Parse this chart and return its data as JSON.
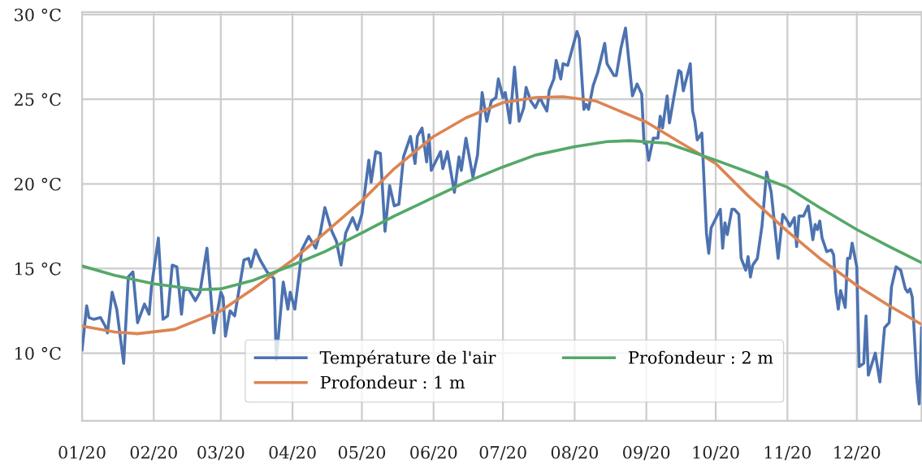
{
  "chart_data": {
    "type": "line",
    "xlim": [
      "2020-01-01",
      "2020-12-29"
    ],
    "xticks": [
      {
        "value": "2020-01-01",
        "label": "01/20"
      },
      {
        "value": "2020-02-01",
        "label": "02/20"
      },
      {
        "value": "2020-03-01",
        "label": "03/20"
      },
      {
        "value": "2020-04-01",
        "label": "04/20"
      },
      {
        "value": "2020-05-01",
        "label": "05/20"
      },
      {
        "value": "2020-06-01",
        "label": "06/20"
      },
      {
        "value": "2020-07-01",
        "label": "07/20"
      },
      {
        "value": "2020-08-01",
        "label": "08/20"
      },
      {
        "value": "2020-09-01",
        "label": "09/20"
      },
      {
        "value": "2020-10-01",
        "label": "10/20"
      },
      {
        "value": "2020-11-01",
        "label": "11/20"
      },
      {
        "value": "2020-12-01",
        "label": "12/20"
      }
    ],
    "ylim": [
      6,
      30.15
    ],
    "yticks": [
      {
        "value": 10,
        "label": "10 °C"
      },
      {
        "value": 15,
        "label": "15 °C"
      },
      {
        "value": 20,
        "label": "20 °C"
      },
      {
        "value": 25,
        "label": "25 °C"
      },
      {
        "value": 30,
        "label": "30 °C"
      }
    ],
    "grid": true,
    "legend": "bottom",
    "line_style": "solid",
    "marker": "none",
    "series": [
      {
        "name": "Température de l'air",
        "color": "#4c72b0",
        "x": [
          "2020-01-01",
          "2020-01-03",
          "2020-01-04",
          "2020-01-06",
          "2020-01-09",
          "2020-01-11",
          "2020-01-12",
          "2020-01-14",
          "2020-01-16",
          "2020-01-19",
          "2020-01-21",
          "2020-01-23",
          "2020-01-25",
          "2020-01-28",
          "2020-01-30",
          "2020-01-31",
          "2020-02-03",
          "2020-02-05",
          "2020-02-07",
          "2020-02-09",
          "2020-02-11",
          "2020-02-13",
          "2020-02-14",
          "2020-02-16",
          "2020-02-19",
          "2020-02-21",
          "2020-02-24",
          "2020-02-27",
          "2020-03-01",
          "2020-03-02",
          "2020-03-03",
          "2020-03-05",
          "2020-03-07",
          "2020-03-11",
          "2020-03-13",
          "2020-03-14",
          "2020-03-16",
          "2020-03-18",
          "2020-03-21",
          "2020-03-24",
          "2020-03-25",
          "2020-03-28",
          "2020-03-30",
          "2020-03-31",
          "2020-04-02",
          "2020-04-04",
          "2020-04-05",
          "2020-04-08",
          "2020-04-11",
          "2020-04-13",
          "2020-04-15",
          "2020-04-18",
          "2020-04-20",
          "2020-04-22",
          "2020-04-24",
          "2020-04-27",
          "2020-04-29",
          "2020-05-01",
          "2020-05-04",
          "2020-05-05",
          "2020-05-07",
          "2020-05-09",
          "2020-05-11",
          "2020-05-13",
          "2020-05-15",
          "2020-05-17",
          "2020-05-19",
          "2020-05-22",
          "2020-05-24",
          "2020-05-25",
          "2020-05-27",
          "2020-05-29",
          "2020-05-30",
          "2020-05-31",
          "2020-06-04",
          "2020-06-05",
          "2020-06-07",
          "2020-06-10",
          "2020-06-12",
          "2020-06-13",
          "2020-06-15",
          "2020-06-18",
          "2020-06-20",
          "2020-06-22",
          "2020-06-24",
          "2020-06-26",
          "2020-06-28",
          "2020-06-29",
          "2020-07-01",
          "2020-07-02",
          "2020-07-04",
          "2020-07-06",
          "2020-07-08",
          "2020-07-10",
          "2020-07-11",
          "2020-07-13",
          "2020-07-15",
          "2020-07-17",
          "2020-07-18",
          "2020-07-20",
          "2020-07-21",
          "2020-07-23",
          "2020-07-24",
          "2020-07-26",
          "2020-07-27",
          "2020-07-29",
          "2020-07-31",
          "2020-08-02",
          "2020-08-03",
          "2020-08-05",
          "2020-08-06",
          "2020-08-07",
          "2020-08-09",
          "2020-08-11",
          "2020-08-14",
          "2020-08-15",
          "2020-08-18",
          "2020-08-19",
          "2020-08-21",
          "2020-08-23",
          "2020-08-26",
          "2020-08-28",
          "2020-08-30",
          "2020-08-31",
          "2020-09-01",
          "2020-09-02",
          "2020-09-04",
          "2020-09-06",
          "2020-09-07",
          "2020-09-08",
          "2020-09-10",
          "2020-09-11",
          "2020-09-13",
          "2020-09-15",
          "2020-09-16",
          "2020-09-17",
          "2020-09-20",
          "2020-09-21",
          "2020-09-22",
          "2020-09-23",
          "2020-09-25",
          "2020-09-27",
          "2020-09-28",
          "2020-09-29",
          "2020-10-03",
          "2020-10-04",
          "2020-10-05",
          "2020-10-06",
          "2020-10-08",
          "2020-10-09",
          "2020-10-11",
          "2020-10-12",
          "2020-10-14",
          "2020-10-15",
          "2020-10-16",
          "2020-10-17",
          "2020-10-19",
          "2020-10-21",
          "2020-10-23",
          "2020-10-25",
          "2020-10-28",
          "2020-10-30",
          "2020-11-01",
          "2020-11-02",
          "2020-11-04",
          "2020-11-05",
          "2020-11-06",
          "2020-11-08",
          "2020-11-10",
          "2020-11-12",
          "2020-11-13",
          "2020-11-14",
          "2020-11-15",
          "2020-11-16",
          "2020-11-18",
          "2020-11-20",
          "2020-11-21",
          "2020-11-22",
          "2020-11-23",
          "2020-11-24",
          "2020-11-26",
          "2020-11-27",
          "2020-11-28",
          "2020-11-29",
          "2020-12-01",
          "2020-12-02",
          "2020-12-04",
          "2020-12-05",
          "2020-12-06",
          "2020-12-09",
          "2020-12-11",
          "2020-12-13",
          "2020-12-15",
          "2020-12-16",
          "2020-12-18",
          "2020-12-20",
          "2020-12-22",
          "2020-12-23",
          "2020-12-24",
          "2020-12-25",
          "2020-12-27",
          "2020-12-28",
          "2020-12-29"
        ],
        "values": [
          10.2,
          12.8,
          12.1,
          12.0,
          12.1,
          11.6,
          11.2,
          13.6,
          12.6,
          9.4,
          14.5,
          14.8,
          11.8,
          12.9,
          12.3,
          13.9,
          16.8,
          12.0,
          12.2,
          15.2,
          15.1,
          12.3,
          13.7,
          13.8,
          13.1,
          13.6,
          16.2,
          11.2,
          13.6,
          13.3,
          11.0,
          12.5,
          12.2,
          15.5,
          15.6,
          15.1,
          16.1,
          15.5,
          14.8,
          14.4,
          9.6,
          14.2,
          12.6,
          13.6,
          12.6,
          14.8,
          16.1,
          16.9,
          16.2,
          17.1,
          18.6,
          17.2,
          16.6,
          15.2,
          17.1,
          18.0,
          17.3,
          18.2,
          21.4,
          20.1,
          21.9,
          21.8,
          17.2,
          19.9,
          18.7,
          18.8,
          21.6,
          22.8,
          21.2,
          22.8,
          23.3,
          21.3,
          22.9,
          20.8,
          21.9,
          20.9,
          21.9,
          19.5,
          21.6,
          20.8,
          22.7,
          20.4,
          21.7,
          25.4,
          23.7,
          24.9,
          25.1,
          26.2,
          25.1,
          25.4,
          23.6,
          26.9,
          23.7,
          24.5,
          25.7,
          24.9,
          24.5,
          25.1,
          24.8,
          24.3,
          25.5,
          26.2,
          27.3,
          26.2,
          27.1,
          27.0,
          28.0,
          29.0,
          28.6,
          24.4,
          24.7,
          24.4,
          25.8,
          26.6,
          28.3,
          27.1,
          26.4,
          26.4,
          28.0,
          29.2,
          25.2,
          25.9,
          25.3,
          22.4,
          22.4,
          21.4,
          22.7,
          22.7,
          24.0,
          23.3,
          25.2,
          23.6,
          25.2,
          26.7,
          26.6,
          25.5,
          27.1,
          24.3,
          23.7,
          22.6,
          23.0,
          17.1,
          15.9,
          17.4,
          18.5,
          16.2,
          17.7,
          17.0,
          18.5,
          18.5,
          18.2,
          15.6,
          14.9,
          15.7,
          14.5,
          15.2,
          15.6,
          17.5,
          20.7,
          19.5,
          15.6,
          18.2,
          17.8,
          17.5,
          18.0,
          16.3,
          18.1,
          18.1,
          18.7,
          16.7,
          17.6,
          17.3,
          17.8,
          16.8,
          16.0,
          16.1,
          15.8,
          13.6,
          12.6,
          13.7,
          12.7,
          15.6,
          15.6,
          16.5,
          15.1,
          9.2,
          9.4,
          12.2,
          8.7,
          10.0,
          8.3,
          11.5,
          11.8,
          13.9,
          15.1,
          14.9,
          13.8,
          13.6,
          13.8,
          13.3,
          8.4,
          7.0,
          11.5
        ]
      },
      {
        "name": "Profondeur : 1 m",
        "color": "#dd8452",
        "x": [
          "2020-01-01",
          "2020-01-15",
          "2020-01-25",
          "2020-02-10",
          "2020-03-01",
          "2020-03-15",
          "2020-04-01",
          "2020-04-15",
          "2020-05-01",
          "2020-05-15",
          "2020-06-01",
          "2020-06-15",
          "2020-07-01",
          "2020-07-15",
          "2020-07-27",
          "2020-08-10",
          "2020-09-01",
          "2020-09-15",
          "2020-10-01",
          "2020-10-15",
          "2020-11-01",
          "2020-11-15",
          "2020-12-01",
          "2020-12-15",
          "2020-12-29"
        ],
        "values": [
          11.6,
          11.25,
          11.15,
          11.4,
          12.5,
          13.8,
          15.5,
          17.1,
          19.0,
          20.9,
          22.8,
          23.9,
          24.8,
          25.1,
          25.15,
          24.9,
          23.65,
          22.5,
          21.2,
          19.3,
          17.2,
          15.6,
          14.0,
          12.8,
          11.7
        ]
      },
      {
        "name": "Profondeur : 2 m",
        "color": "#55a868",
        "x": [
          "2020-01-01",
          "2020-01-15",
          "2020-02-01",
          "2020-02-20",
          "2020-03-01",
          "2020-03-15",
          "2020-04-01",
          "2020-04-15",
          "2020-05-01",
          "2020-05-15",
          "2020-06-01",
          "2020-06-15",
          "2020-07-01",
          "2020-07-15",
          "2020-08-01",
          "2020-08-15",
          "2020-08-25",
          "2020-09-10",
          "2020-10-01",
          "2020-10-15",
          "2020-11-01",
          "2020-11-15",
          "2020-12-01",
          "2020-12-15",
          "2020-12-29"
        ],
        "values": [
          15.15,
          14.6,
          14.1,
          13.75,
          13.8,
          14.3,
          15.2,
          16.0,
          17.1,
          18.1,
          19.2,
          20.1,
          21.0,
          21.7,
          22.2,
          22.5,
          22.55,
          22.4,
          21.4,
          20.7,
          19.8,
          18.6,
          17.3,
          16.3,
          15.35
        ]
      }
    ]
  }
}
